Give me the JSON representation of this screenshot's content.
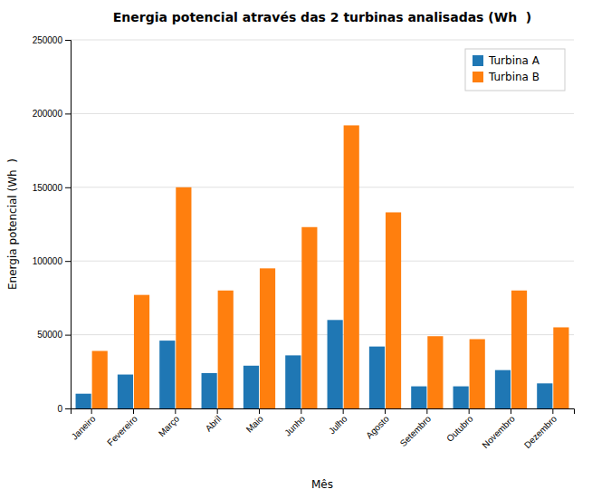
{
  "chart_data": {
    "type": "bar",
    "title": "Energia potencial através das 2 turbinas analisadas (Wh  )",
    "xlabel": "Mês",
    "ylabel": "Energia potencial (Wh  )",
    "categories": [
      "Janeiro",
      "Fevereiro",
      "Março",
      "Abril",
      "Maio",
      "Junho",
      "Julho",
      "Agosto",
      "Setembro",
      "Outubro",
      "Novembro",
      "Dezembro"
    ],
    "series": [
      {
        "name": "Turbina A",
        "values": [
          10000,
          23000,
          46000,
          24000,
          29000,
          36000,
          60000,
          42000,
          15000,
          15000,
          26000,
          17000
        ]
      },
      {
        "name": "Turbina B",
        "values": [
          39000,
          77000,
          150000,
          80000,
          95000,
          123000,
          192000,
          133000,
          49000,
          47000,
          80000,
          55000
        ]
      }
    ],
    "ylim": [
      0,
      250000
    ],
    "yticks": [
      0,
      50000,
      100000,
      150000,
      200000,
      250000
    ],
    "grid": true,
    "legend": "upper right"
  }
}
